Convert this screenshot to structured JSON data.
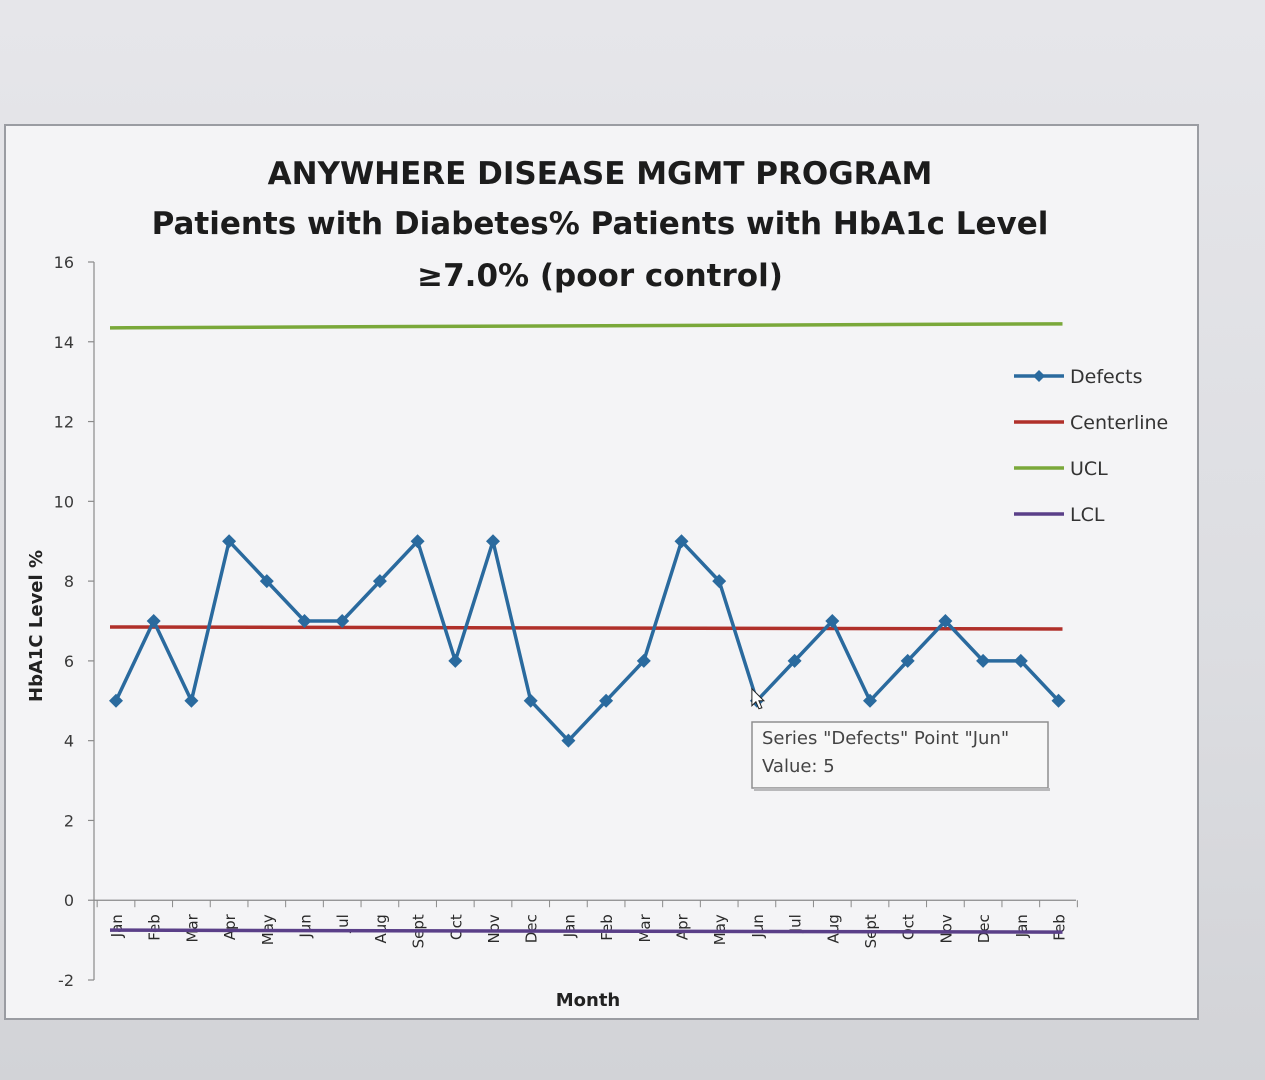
{
  "chart_data": {
    "type": "line",
    "title": "ANYWHERE DISEASE MGMT PROGRAM",
    "subtitle": [
      "Patients with Diabetes% Patients with HbA1c Level",
      "≥7.0% (poor control)"
    ],
    "xlabel": "Month",
    "ylabel": "HbA1C Level %",
    "ylim": [
      -2,
      16
    ],
    "yticks": [
      -2,
      0,
      2,
      4,
      6,
      8,
      10,
      12,
      14,
      16
    ],
    "categories": [
      "Jan",
      "Feb",
      "Mar",
      "Apr",
      "May",
      "Jun",
      "Jul",
      "Aug",
      "Sept",
      "Oct",
      "Nov",
      "Dec",
      "Jan",
      "Feb",
      "Mar",
      "Apr",
      "May",
      "Jun",
      "Jul",
      "Aug",
      "Sept",
      "Oct",
      "Nov",
      "Dec",
      "Jan",
      "Feb"
    ],
    "series": [
      {
        "name": "Defects",
        "color": "#2a6a9e",
        "marker": "diamond",
        "values": [
          5,
          7,
          5,
          9,
          8,
          7,
          7,
          8,
          9,
          6,
          9,
          5,
          4,
          5,
          6,
          9,
          8,
          5,
          6,
          7,
          5,
          6,
          7,
          6,
          6,
          5
        ]
      },
      {
        "name": "Centerline",
        "color": "#b0302a",
        "values_start_end": [
          6.85,
          6.8
        ]
      },
      {
        "name": "UCL",
        "color": "#7aa83a",
        "values_start_end": [
          14.35,
          14.45
        ]
      },
      {
        "name": "LCL",
        "color": "#5a3f88",
        "values_start_end": [
          -0.75,
          -0.8
        ]
      }
    ],
    "legend_position": "right",
    "tooltip": {
      "line1": "Series \"Defects\" Point \"Jun\"",
      "line2": "Value: 5",
      "point_index": 17
    }
  }
}
